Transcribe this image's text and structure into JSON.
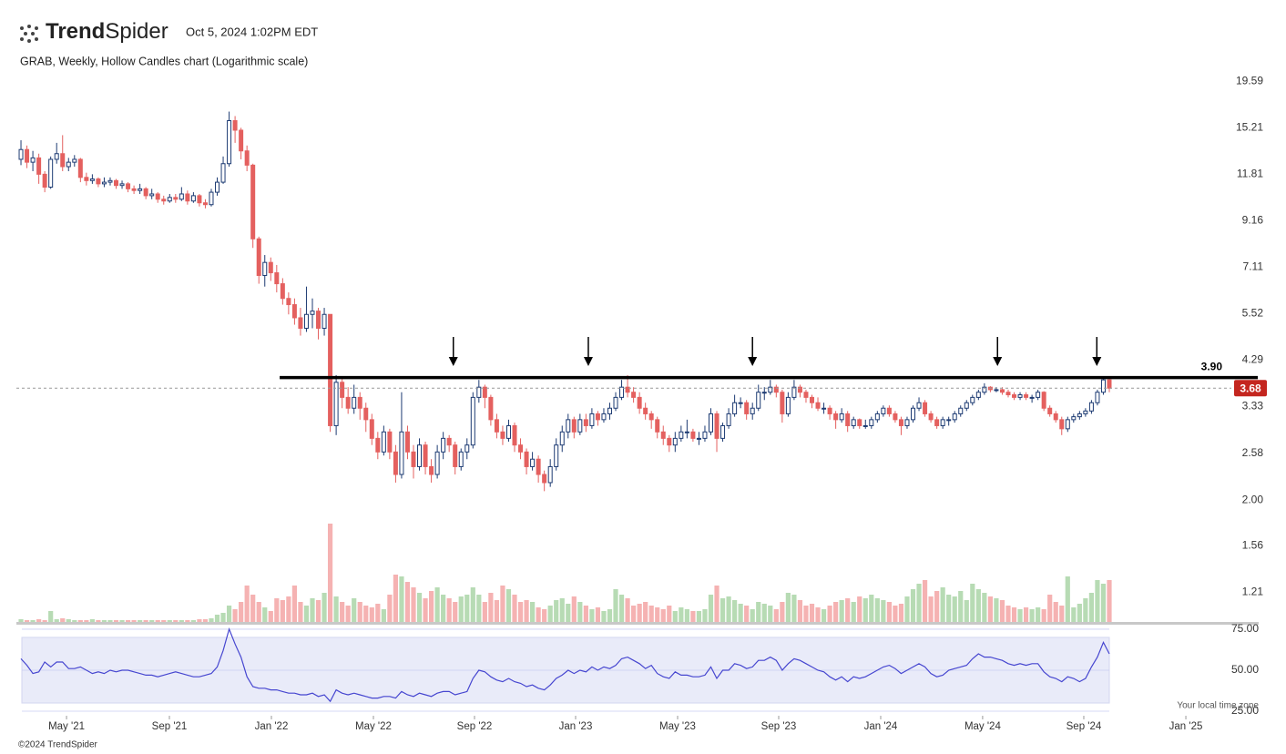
{
  "header": {
    "brand_bold": "Trend",
    "brand_light": "Spider",
    "timestamp": "Oct 5, 2024 1:02PM EDT"
  },
  "footer": {
    "copyright": "©2024 TrendSpider",
    "timezone": "Your local time zone"
  },
  "chart_data": {
    "type": "candlestick",
    "title": "GRAB, Weekly, Hollow Candles chart (Logarithmic scale)",
    "log_scale": true,
    "xlim": [
      -0.77,
      202.45
    ],
    "xticks": [
      {
        "value": 7.66,
        "label": "May '21"
      },
      {
        "value": 24.96,
        "label": "Sep '21"
      },
      {
        "value": 42.11,
        "label": "Jan '22"
      },
      {
        "value": 59.26,
        "label": "May '22"
      },
      {
        "value": 76.26,
        "label": "Sep '22"
      },
      {
        "value": 93.26,
        "label": "Jan '23"
      },
      {
        "value": 110.41,
        "label": "May '23"
      },
      {
        "value": 127.41,
        "label": "Sep '23"
      },
      {
        "value": 144.56,
        "label": "Jan '24"
      },
      {
        "value": 161.7,
        "label": "May '24"
      },
      {
        "value": 178.71,
        "label": "Sep '24"
      },
      {
        "value": 195.87,
        "label": "Jan '25"
      }
    ],
    "ylim": [
      1.03,
      20.5
    ],
    "yticks": [
      19.59,
      15.21,
      11.81,
      9.16,
      7.11,
      5.52,
      4.29,
      3.33,
      2.58,
      {
        "value": 2,
        "label": "2.00"
      },
      1.56,
      1.21
    ],
    "up_color": "#1d3b73",
    "down_color": "#e4605f",
    "candles": [
      [
        12.8,
        14.2,
        12.4,
        13.5
      ],
      [
        13.5,
        13.8,
        12.2,
        12.6
      ],
      [
        12.6,
        13.4,
        12.0,
        12.9
      ],
      [
        12.9,
        13.2,
        11.2,
        11.8
      ],
      [
        11.8,
        12.0,
        10.7,
        11.0
      ],
      [
        11.0,
        13.0,
        10.9,
        12.8
      ],
      [
        12.8,
        14.0,
        12.5,
        13.2
      ],
      [
        13.2,
        14.6,
        12.0,
        12.3
      ],
      [
        12.3,
        12.9,
        12.0,
        12.6
      ],
      [
        12.6,
        13.1,
        12.3,
        12.8
      ],
      [
        12.8,
        12.9,
        11.3,
        11.6
      ],
      [
        11.6,
        11.9,
        11.1,
        11.4
      ],
      [
        11.4,
        11.8,
        11.2,
        11.5
      ],
      [
        11.5,
        11.6,
        11.0,
        11.2
      ],
      [
        11.2,
        11.6,
        11.0,
        11.3
      ],
      [
        11.3,
        11.6,
        11.1,
        11.4
      ],
      [
        11.4,
        11.5,
        10.9,
        11.1
      ],
      [
        11.1,
        11.4,
        10.9,
        11.2
      ],
      [
        11.2,
        11.3,
        10.7,
        10.9
      ],
      [
        10.9,
        11.1,
        10.6,
        10.8
      ],
      [
        10.8,
        11.2,
        10.6,
        10.9
      ],
      [
        10.9,
        11.0,
        10.3,
        10.5
      ],
      [
        10.5,
        10.9,
        10.3,
        10.6
      ],
      [
        10.6,
        10.7,
        10.1,
        10.3
      ],
      [
        10.3,
        10.5,
        10.0,
        10.2
      ],
      [
        10.2,
        10.6,
        10.1,
        10.4
      ],
      [
        10.4,
        10.6,
        10.1,
        10.3
      ],
      [
        10.3,
        11.0,
        10.2,
        10.6
      ],
      [
        10.6,
        10.8,
        10.0,
        10.2
      ],
      [
        10.2,
        10.7,
        10.1,
        10.5
      ],
      [
        10.5,
        10.6,
        9.9,
        10.1
      ],
      [
        10.1,
        10.3,
        9.8,
        10.0
      ],
      [
        10.0,
        10.9,
        9.9,
        10.7
      ],
      [
        10.7,
        11.6,
        10.5,
        11.3
      ],
      [
        11.3,
        13.0,
        11.2,
        12.5
      ],
      [
        12.5,
        16.6,
        12.3,
        15.8
      ],
      [
        15.8,
        16.2,
        14.0,
        15.0
      ],
      [
        15.0,
        15.2,
        12.8,
        13.4
      ],
      [
        13.4,
        13.8,
        12.0,
        12.4
      ],
      [
        12.4,
        12.5,
        7.9,
        8.3
      ],
      [
        8.3,
        8.4,
        6.5,
        6.8
      ],
      [
        6.8,
        7.6,
        6.4,
        7.3
      ],
      [
        7.3,
        7.5,
        6.6,
        6.9
      ],
      [
        6.9,
        7.2,
        6.2,
        6.5
      ],
      [
        6.5,
        6.7,
        5.8,
        6.0
      ],
      [
        6.0,
        6.2,
        5.5,
        5.8
      ],
      [
        5.8,
        6.0,
        5.2,
        5.4
      ],
      [
        5.4,
        5.7,
        4.9,
        5.1
      ],
      [
        5.1,
        6.4,
        5.0,
        5.5
      ],
      [
        5.5,
        6.0,
        5.1,
        5.6
      ],
      [
        5.6,
        5.7,
        4.8,
        5.1
      ],
      [
        5.1,
        5.7,
        4.9,
        5.5
      ],
      [
        5.5,
        5.5,
        2.9,
        3.0
      ],
      [
        3.0,
        3.95,
        2.85,
        3.8
      ],
      [
        3.8,
        3.9,
        3.3,
        3.5
      ],
      [
        3.5,
        3.7,
        3.2,
        3.3
      ],
      [
        3.3,
        3.75,
        3.2,
        3.5
      ],
      [
        3.5,
        3.6,
        3.1,
        3.3
      ],
      [
        3.3,
        3.4,
        2.9,
        3.1
      ],
      [
        3.1,
        3.2,
        2.7,
        2.8
      ],
      [
        2.8,
        2.9,
        2.5,
        2.6
      ],
      [
        2.6,
        3.0,
        2.55,
        2.9
      ],
      [
        2.9,
        2.95,
        2.5,
        2.6
      ],
      [
        2.6,
        2.7,
        2.2,
        2.3
      ],
      [
        2.3,
        3.6,
        2.25,
        2.9
      ],
      [
        2.9,
        3.0,
        2.5,
        2.6
      ],
      [
        2.6,
        2.7,
        2.25,
        2.4
      ],
      [
        2.4,
        2.8,
        2.35,
        2.7
      ],
      [
        2.7,
        2.75,
        2.3,
        2.4
      ],
      [
        2.4,
        2.5,
        2.2,
        2.3
      ],
      [
        2.3,
        2.7,
        2.25,
        2.6
      ],
      [
        2.6,
        2.9,
        2.5,
        2.8
      ],
      [
        2.8,
        2.85,
        2.6,
        2.7
      ],
      [
        2.7,
        2.75,
        2.3,
        2.4
      ],
      [
        2.4,
        2.65,
        2.35,
        2.6
      ],
      [
        2.6,
        2.8,
        2.5,
        2.7
      ],
      [
        2.7,
        3.6,
        2.65,
        3.5
      ],
      [
        3.5,
        3.85,
        3.4,
        3.7
      ],
      [
        3.7,
        3.75,
        3.3,
        3.5
      ],
      [
        3.5,
        3.55,
        3.0,
        3.1
      ],
      [
        3.1,
        3.2,
        2.8,
        2.9
      ],
      [
        2.9,
        3.0,
        2.7,
        2.8
      ],
      [
        2.8,
        3.1,
        2.75,
        3.0
      ],
      [
        3.0,
        3.05,
        2.6,
        2.7
      ],
      [
        2.7,
        2.8,
        2.5,
        2.6
      ],
      [
        2.6,
        2.65,
        2.3,
        2.4
      ],
      [
        2.4,
        2.6,
        2.35,
        2.5
      ],
      [
        2.5,
        2.55,
        2.2,
        2.3
      ],
      [
        2.3,
        2.35,
        2.1,
        2.2
      ],
      [
        2.2,
        2.5,
        2.15,
        2.4
      ],
      [
        2.4,
        2.8,
        2.35,
        2.7
      ],
      [
        2.7,
        3.0,
        2.6,
        2.9
      ],
      [
        2.9,
        3.2,
        2.8,
        3.1
      ],
      [
        3.1,
        3.15,
        2.8,
        2.9
      ],
      [
        2.9,
        3.2,
        2.85,
        3.1
      ],
      [
        3.1,
        3.2,
        2.9,
        3.0
      ],
      [
        3.0,
        3.3,
        2.95,
        3.2
      ],
      [
        3.2,
        3.25,
        3.0,
        3.1
      ],
      [
        3.1,
        3.3,
        3.05,
        3.2
      ],
      [
        3.2,
        3.4,
        3.1,
        3.3
      ],
      [
        3.3,
        3.6,
        3.25,
        3.5
      ],
      [
        3.5,
        3.85,
        3.45,
        3.7
      ],
      [
        3.7,
        3.95,
        3.5,
        3.6
      ],
      [
        3.6,
        3.7,
        3.4,
        3.5
      ],
      [
        3.5,
        3.6,
        3.2,
        3.3
      ],
      [
        3.3,
        3.4,
        3.1,
        3.2
      ],
      [
        3.2,
        3.25,
        2.95,
        3.1
      ],
      [
        3.1,
        3.15,
        2.8,
        2.9
      ],
      [
        2.9,
        3.0,
        2.7,
        2.8
      ],
      [
        2.8,
        2.85,
        2.6,
        2.7
      ],
      [
        2.7,
        2.9,
        2.6,
        2.8
      ],
      [
        2.8,
        3.0,
        2.75,
        2.9
      ],
      [
        2.9,
        3.1,
        2.8,
        2.9
      ],
      [
        2.9,
        2.95,
        2.75,
        2.8
      ],
      [
        2.8,
        2.9,
        2.7,
        2.8
      ],
      [
        2.8,
        3.0,
        2.75,
        2.9
      ],
      [
        2.9,
        3.3,
        2.85,
        3.2
      ],
      [
        3.2,
        3.25,
        2.6,
        2.8
      ],
      [
        2.8,
        3.05,
        2.75,
        3.0
      ],
      [
        3.0,
        3.3,
        2.95,
        3.2
      ],
      [
        3.2,
        3.55,
        3.15,
        3.4
      ],
      [
        3.4,
        3.5,
        3.3,
        3.4
      ],
      [
        3.4,
        3.45,
        3.1,
        3.2
      ],
      [
        3.2,
        3.4,
        3.1,
        3.3
      ],
      [
        3.3,
        3.75,
        3.25,
        3.6
      ],
      [
        3.6,
        3.7,
        3.45,
        3.6
      ],
      [
        3.6,
        3.85,
        3.55,
        3.7
      ],
      [
        3.7,
        3.75,
        3.5,
        3.6
      ],
      [
        3.6,
        3.65,
        3.05,
        3.2
      ],
      [
        3.2,
        3.6,
        3.15,
        3.5
      ],
      [
        3.5,
        3.85,
        3.45,
        3.7
      ],
      [
        3.7,
        3.75,
        3.5,
        3.6
      ],
      [
        3.6,
        3.65,
        3.4,
        3.5
      ],
      [
        3.5,
        3.55,
        3.3,
        3.4
      ],
      [
        3.4,
        3.5,
        3.25,
        3.3
      ],
      [
        3.3,
        3.4,
        3.2,
        3.3
      ],
      [
        3.3,
        3.35,
        3.1,
        3.2
      ],
      [
        3.2,
        3.25,
        2.95,
        3.1
      ],
      [
        3.1,
        3.3,
        3.05,
        3.2
      ],
      [
        3.2,
        3.25,
        2.9,
        3.0
      ],
      [
        3.0,
        3.15,
        2.95,
        3.1
      ],
      [
        3.1,
        3.12,
        2.95,
        3.0
      ],
      [
        3.0,
        3.1,
        2.95,
        3.0
      ],
      [
        3.0,
        3.15,
        2.95,
        3.1
      ],
      [
        3.1,
        3.25,
        3.05,
        3.2
      ],
      [
        3.2,
        3.35,
        3.15,
        3.3
      ],
      [
        3.3,
        3.35,
        3.15,
        3.2
      ],
      [
        3.2,
        3.25,
        3.05,
        3.1
      ],
      [
        3.1,
        3.15,
        2.85,
        3.0
      ],
      [
        3.0,
        3.15,
        2.95,
        3.1
      ],
      [
        3.1,
        3.35,
        3.05,
        3.3
      ],
      [
        3.3,
        3.5,
        3.25,
        3.4
      ],
      [
        3.4,
        3.45,
        3.15,
        3.2
      ],
      [
        3.2,
        3.25,
        3.05,
        3.1
      ],
      [
        3.1,
        3.15,
        2.95,
        3.0
      ],
      [
        3.0,
        3.15,
        2.95,
        3.1
      ],
      [
        3.1,
        3.15,
        3.0,
        3.1
      ],
      [
        3.1,
        3.25,
        3.05,
        3.2
      ],
      [
        3.2,
        3.35,
        3.15,
        3.3
      ],
      [
        3.3,
        3.45,
        3.25,
        3.4
      ],
      [
        3.4,
        3.55,
        3.35,
        3.5
      ],
      [
        3.5,
        3.65,
        3.45,
        3.6
      ],
      [
        3.6,
        3.78,
        3.55,
        3.7
      ],
      [
        3.7,
        3.72,
        3.6,
        3.65
      ],
      [
        3.65,
        3.7,
        3.6,
        3.65
      ],
      [
        3.65,
        3.7,
        3.55,
        3.6
      ],
      [
        3.6,
        3.65,
        3.5,
        3.55
      ],
      [
        3.55,
        3.6,
        3.45,
        3.5
      ],
      [
        3.5,
        3.6,
        3.45,
        3.55
      ],
      [
        3.55,
        3.6,
        3.45,
        3.5
      ],
      [
        3.5,
        3.55,
        3.4,
        3.5
      ],
      [
        3.5,
        3.65,
        3.45,
        3.6
      ],
      [
        3.6,
        3.62,
        3.25,
        3.3
      ],
      [
        3.3,
        3.35,
        3.15,
        3.2
      ],
      [
        3.2,
        3.25,
        3.05,
        3.1
      ],
      [
        3.1,
        3.15,
        2.85,
        2.95
      ],
      [
        2.95,
        3.15,
        2.9,
        3.1
      ],
      [
        3.1,
        3.2,
        3.05,
        3.15
      ],
      [
        3.15,
        3.25,
        3.1,
        3.2
      ],
      [
        3.2,
        3.3,
        3.15,
        3.25
      ],
      [
        3.25,
        3.45,
        3.2,
        3.4
      ],
      [
        3.4,
        3.65,
        3.35,
        3.6
      ],
      [
        3.6,
        3.92,
        3.55,
        3.85
      ],
      [
        3.85,
        3.9,
        3.6,
        3.68
      ]
    ],
    "volume": [
      3,
      2,
      2,
      3,
      2,
      12,
      3,
      4,
      3,
      2,
      2,
      2,
      3,
      2,
      2,
      2,
      2,
      2,
      2,
      2,
      2,
      2,
      2,
      2,
      2,
      2,
      2,
      2,
      2,
      2,
      3,
      3,
      4,
      8,
      10,
      18,
      14,
      22,
      40,
      30,
      22,
      16,
      12,
      26,
      24,
      28,
      40,
      22,
      18,
      26,
      24,
      32,
      108,
      28,
      22,
      18,
      26,
      22,
      18,
      16,
      20,
      14,
      30,
      52,
      50,
      44,
      38,
      32,
      26,
      34,
      38,
      30,
      26,
      22,
      28,
      30,
      38,
      30,
      22,
      32,
      24,
      40,
      36,
      30,
      22,
      24,
      22,
      16,
      14,
      18,
      24,
      26,
      20,
      28,
      22,
      18,
      14,
      16,
      12,
      14,
      36,
      30,
      26,
      18,
      20,
      22,
      18,
      16,
      14,
      18,
      12,
      16,
      14,
      12,
      12,
      14,
      30,
      40,
      26,
      28,
      24,
      20,
      18,
      14,
      22,
      20,
      18,
      14,
      22,
      32,
      30,
      24,
      18,
      20,
      16,
      14,
      18,
      22,
      24,
      26,
      22,
      28,
      26,
      30,
      26,
      24,
      22,
      18,
      20,
      28,
      36,
      42,
      46,
      28,
      34,
      38,
      30,
      28,
      34,
      24,
      42,
      36,
      32,
      28,
      26,
      24,
      18,
      16,
      14,
      16,
      14,
      16,
      14,
      30,
      22,
      18,
      50,
      16,
      20,
      26,
      32,
      46,
      42,
      46
    ],
    "volume_up_color": "#b7dbb4",
    "volume_down_color": "#f5b2b2",
    "last_price": 3.68,
    "last_price_color": "#c4261f",
    "resistance": {
      "value": 3.9,
      "label": "3.90",
      "x_start": 43.5
    },
    "arrows_x": [
      72.7,
      95.4,
      123.0,
      164.2,
      180.9
    ],
    "rsi": {
      "values": [
        57,
        53,
        48,
        49,
        55,
        52,
        55,
        55,
        51,
        51,
        52,
        50,
        48,
        49,
        48,
        50,
        49,
        50,
        50,
        49,
        48,
        47,
        47,
        46,
        47,
        48,
        49,
        48,
        47,
        46,
        46,
        47,
        48,
        52,
        62,
        75,
        66,
        58,
        46,
        40,
        39,
        39,
        38,
        38,
        37,
        36,
        36,
        35,
        35,
        36,
        34,
        35,
        31,
        38,
        36,
        35,
        36,
        35,
        34,
        33,
        33,
        34,
        34,
        33,
        37,
        35,
        34,
        36,
        35,
        34,
        36,
        37,
        37,
        35,
        36,
        37,
        45,
        50,
        49,
        46,
        44,
        43,
        45,
        43,
        42,
        40,
        41,
        39,
        38,
        41,
        45,
        47,
        50,
        48,
        50,
        49,
        52,
        50,
        52,
        51,
        53,
        57,
        58,
        56,
        54,
        51,
        53,
        48,
        46,
        45,
        49,
        47,
        47,
        46,
        46,
        47,
        52,
        45,
        50,
        50,
        54,
        53,
        51,
        52,
        56,
        56,
        58,
        56,
        50,
        54,
        57,
        56,
        54,
        52,
        50,
        49,
        46,
        44,
        46,
        43,
        46,
        45,
        46,
        48,
        50,
        52,
        53,
        51,
        48,
        50,
        52,
        54,
        52,
        48,
        46,
        47,
        50,
        51,
        52,
        53,
        57,
        60,
        58,
        58,
        57,
        56,
        54,
        53,
        54,
        53,
        54,
        54,
        49,
        46,
        45,
        43,
        46,
        45,
        43,
        45,
        52,
        58,
        67,
        60
      ],
      "ylim": [
        22.8,
        78.3
      ],
      "yticks": [
        {
          "value": 75,
          "label": "75.00"
        },
        {
          "value": 50,
          "label": "50.00"
        },
        {
          "value": 25,
          "label": "25.00"
        }
      ],
      "band": [
        30,
        70
      ],
      "color": "#4646d0"
    }
  }
}
